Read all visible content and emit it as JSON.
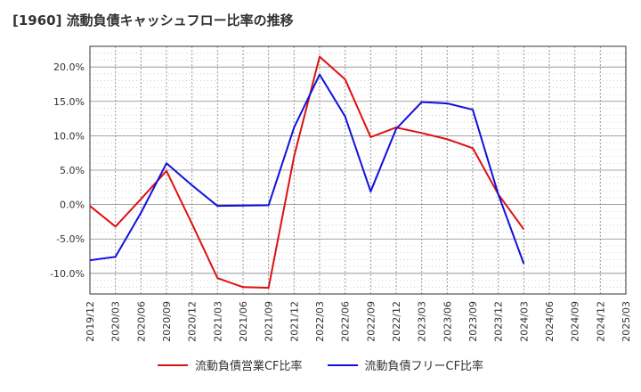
{
  "chart_data": {
    "type": "line",
    "title": "[1960]  流動負債キャッシュフロー比率の推移",
    "categories": [
      "2019/12",
      "2020/03",
      "2020/06",
      "2020/09",
      "2020/12",
      "2021/03",
      "2021/06",
      "2021/09",
      "2021/12",
      "2022/03",
      "2022/06",
      "2022/09",
      "2022/12",
      "2023/03",
      "2023/06",
      "2023/09",
      "2023/12",
      "2024/03",
      "2024/06",
      "2024/09",
      "2024/12",
      "2025/03"
    ],
    "ylim": [
      -13,
      23
    ],
    "yticks": [
      -10,
      -5,
      0,
      5,
      10,
      15,
      20
    ],
    "ytick_labels": [
      "-10.0%",
      "-5.0%",
      "0.0%",
      "5.0%",
      "10.0%",
      "15.0%",
      "20.0%"
    ],
    "grid": true,
    "legend_position": "bottom",
    "series": [
      {
        "name": "流動負債営業CF比率",
        "color": "#dd1111",
        "values": [
          -0.2,
          -3.2,
          0.8,
          4.9,
          -2.8,
          -10.7,
          -12.0,
          -12.1,
          7.0,
          21.5,
          18.2,
          9.8,
          11.2,
          10.4,
          9.5,
          8.2,
          1.5,
          -3.6,
          null,
          null,
          null,
          null
        ]
      },
      {
        "name": "流動負債フリーCF比率",
        "color": "#1111dd",
        "values": [
          -8.1,
          -7.6,
          -1.2,
          6.0,
          2.8,
          -0.2,
          -0.15,
          -0.1,
          11.2,
          18.9,
          12.8,
          1.9,
          11.0,
          14.9,
          14.7,
          13.8,
          1.5,
          -8.6,
          null,
          null,
          null,
          null
        ]
      }
    ]
  }
}
